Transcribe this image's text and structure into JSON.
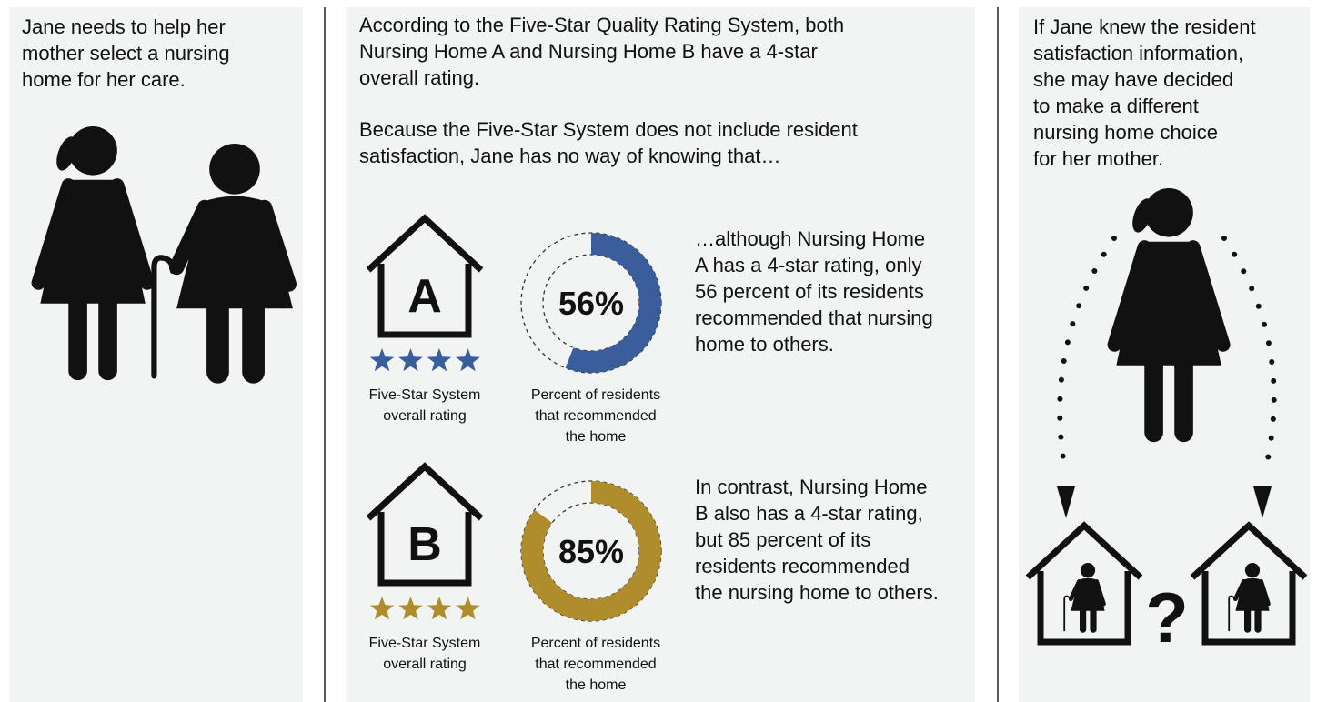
{
  "left": {
    "lines": [
      "Jane needs to help her",
      "mother select a nursing",
      "home for her care."
    ]
  },
  "middle": {
    "intro": [
      "According to the Five-Star Quality Rating System, both",
      "Nursing Home A and Nursing Home B have a 4-star",
      "overall rating."
    ],
    "intro2": [
      "Because the Five-Star System does not include resident",
      "satisfaction, Jane has no way of knowing that…"
    ],
    "homes": [
      {
        "letter": "A",
        "stars": 4,
        "rating_caption": [
          "Five-Star System",
          "overall rating"
        ],
        "percent": 56,
        "percent_label": "56%",
        "percent_caption": [
          "Percent of residents",
          "that recommended",
          "the home"
        ],
        "color": "#3a5e9c",
        "description": [
          "…although Nursing Home",
          "A has a 4-star rating, only",
          "56 percent of its residents",
          "recommended that nursing",
          "home to others."
        ]
      },
      {
        "letter": "B",
        "stars": 4,
        "rating_caption": [
          "Five-Star System",
          "overall rating"
        ],
        "percent": 85,
        "percent_label": "85%",
        "percent_caption": [
          "Percent of residents",
          "that recommended",
          "the home"
        ],
        "color": "#b08d2c",
        "description": [
          "In contrast, Nursing Home",
          "B also has a 4-star rating,",
          "but 85 percent of its",
          "residents recommended",
          "the nursing home to others."
        ]
      }
    ]
  },
  "right": {
    "lines": [
      "If Jane knew the resident",
      "satisfaction information,",
      "she may have decided",
      "to make a different",
      "nursing home choice",
      "for her mother."
    ],
    "question": "?"
  }
}
